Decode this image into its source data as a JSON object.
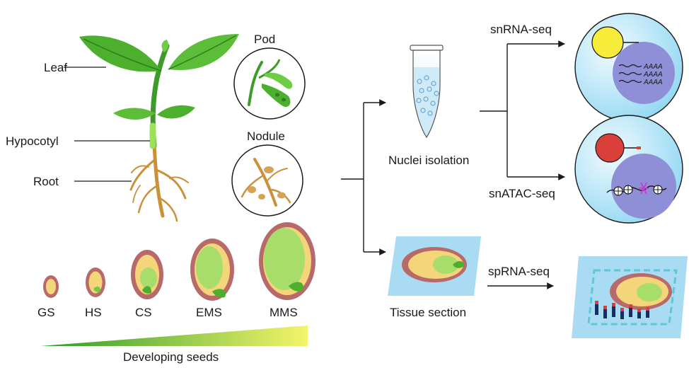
{
  "organs": {
    "leaf": "Leaf",
    "hypocotyl": "Hypocotyl",
    "root": "Root",
    "pod": "Pod",
    "nodule": "Nodule"
  },
  "seeds": {
    "stages": [
      "GS",
      "HS",
      "CS",
      "EMS",
      "MMS"
    ],
    "caption": "Developing seeds"
  },
  "workflow": {
    "nuclei_isolation": "Nuclei isolation",
    "tissue_section": "Tissue section",
    "snrna_seq": "snRNA-seq",
    "snatac_seq": "snATAC-seq",
    "sprna_seq": "spRNA-seq",
    "polya_tail": "AAAA"
  },
  "colors": {
    "leaf_green": "#4caf2e",
    "hypocotyl_green": "#9ee05a",
    "root_brown": "#c8913a",
    "seed_coat": "#b86a6a",
    "seed_yellow": "#f5d57a",
    "embryo_green": "#a8dd6c",
    "circle_cyan": "#bfe8f7",
    "nucleus_purple": "#8f8fd8",
    "slide_blue": "#a9dcf2",
    "gradient_start": "#2c9a2c",
    "gradient_end": "#f4f46a"
  }
}
